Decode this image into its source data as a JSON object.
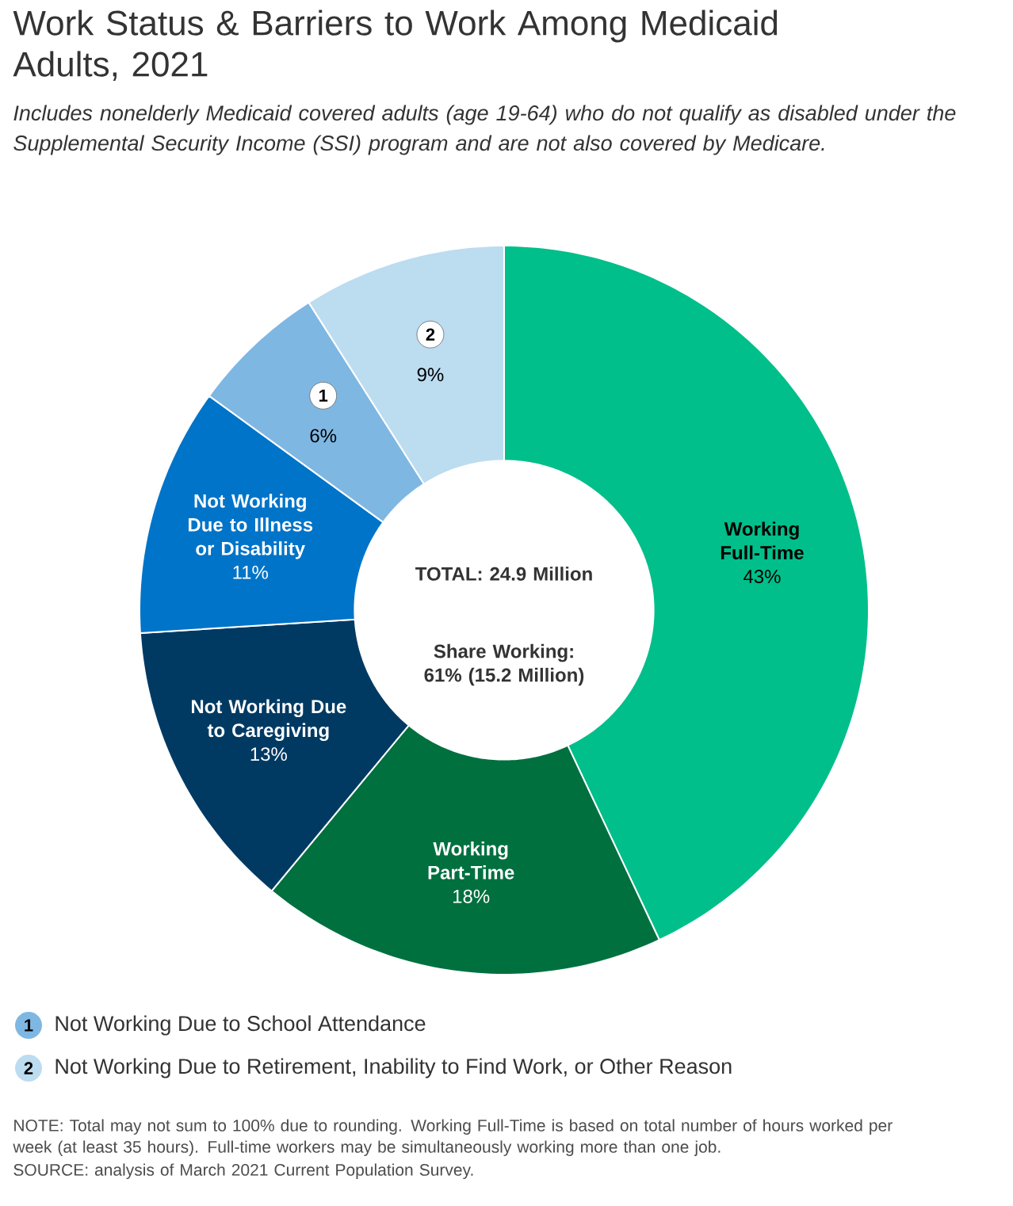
{
  "chart_data": {
    "type": "donut",
    "legend": "bottom left",
    "title": "Work Status & Barriers to Work Among Medicaid Adults, 2021",
    "subtitle": "Includes nonelderly Medicaid covered adults (age 19-64) who do not qualify as disabled under the Supplemental Security Income (SSI) program and are not also covered by Medicare.",
    "categories": [
      "Working Full-Time",
      "Working Part-Time",
      "Not Working Due to Caregiving",
      "Not Working Due to Illness or Disability",
      "Not Working Due to School Attendance",
      "Not Working Due to Retirement, Inability to Find Work, or Other Reason"
    ],
    "values": [
      43,
      18,
      13,
      11,
      6,
      9
    ],
    "value_labels": [
      "43%",
      "18%",
      "13%",
      "11%",
      "6%",
      "9%"
    ],
    "colors": [
      "#00bf8a",
      "#00703f",
      "#003a63",
      "#0074c8",
      "#7fb7e3",
      "#bcdcf0"
    ],
    "annotations": [
      "TOTAL: 24.9 Million",
      "Share Working: 61% (15.2 Million)",
      {
        "text": "1",
        "x": "Not Working Due to School Attendance"
      },
      {
        "text": "2",
        "x": "Not Working Due to Retirement, Inability to Find Work, or Other Reason"
      },
      "NOTE: Total may not sum to 100% due to rounding. Working Full-Time is based on total number of hours worked per week (at least 35 hours). Full-time workers may be simultaneously working more than one job.",
      "SOURCE: analysis of March 2021 Current Population Survey."
    ]
  }
}
